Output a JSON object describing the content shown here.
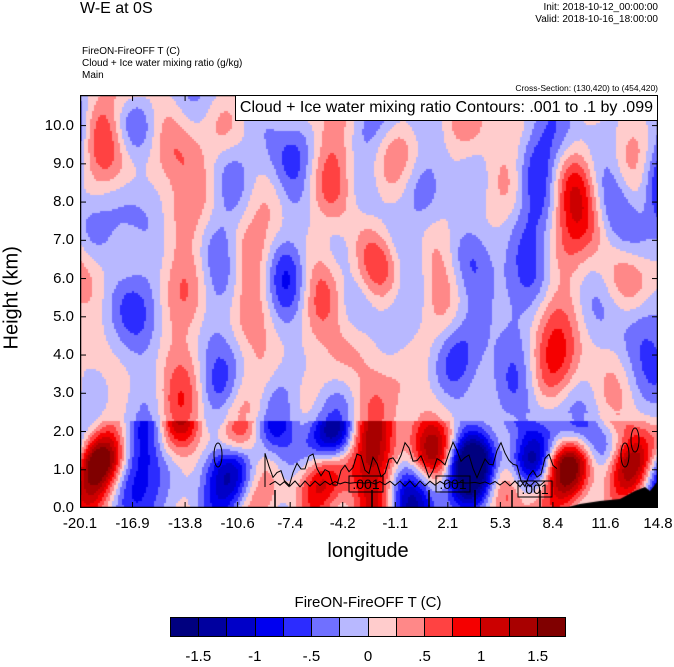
{
  "header": {
    "title": "W-E at 0S",
    "init": "Init: 2018-10-12_00:00:00",
    "valid": "Valid: 2018-10-16_18:00:00",
    "subtitles": [
      "FireON-FireOFF T   (C)",
      "Cloud + Ice water mixing ratio   (g/kg)",
      "Main"
    ],
    "cross_section": "Cross-Section: (130,420) to (454,420)"
  },
  "chart_data": {
    "type": "heatmap",
    "title": "FireON-FireOFF T  (C)",
    "xlabel": "longitude",
    "ylabel": "Height (km)",
    "xlim": [
      -20.1,
      14.8
    ],
    "ylim": [
      0,
      10.8
    ],
    "xticks": [
      "-20.1",
      "-16.9",
      "-13.8",
      "-10.6",
      "-7.4",
      "-4.2",
      "-1.1",
      "2.1",
      "5.3",
      "8.4",
      "11.6",
      "14.8"
    ],
    "yticks": [
      "0.0",
      "1.0",
      "2.0",
      "3.0",
      "4.0",
      "5.0",
      "6.0",
      "7.0",
      "8.0",
      "9.0",
      "10.0"
    ],
    "contour_info": "Cloud + Ice water mixing ratio Contours: .001 to .1 by .099",
    "contour_labels": [
      ".001",
      ".001",
      ".001"
    ],
    "colorbar": {
      "title": "FireON-FireOFF T  (C)",
      "levels_range": [
        -1.75,
        1.75
      ],
      "step": 0.25,
      "labels": [
        "-1.5",
        "-1",
        "-.5",
        "0",
        ".5",
        "1",
        "1.5"
      ],
      "colors": [
        "#00007f",
        "#00009f",
        "#0000c8",
        "#0000f0",
        "#2c2cff",
        "#7070ff",
        "#b8b8ff",
        "#ffcccc",
        "#ff8888",
        "#ff4242",
        "#f50000",
        "#cc0000",
        "#a80000",
        "#800000"
      ]
    }
  }
}
